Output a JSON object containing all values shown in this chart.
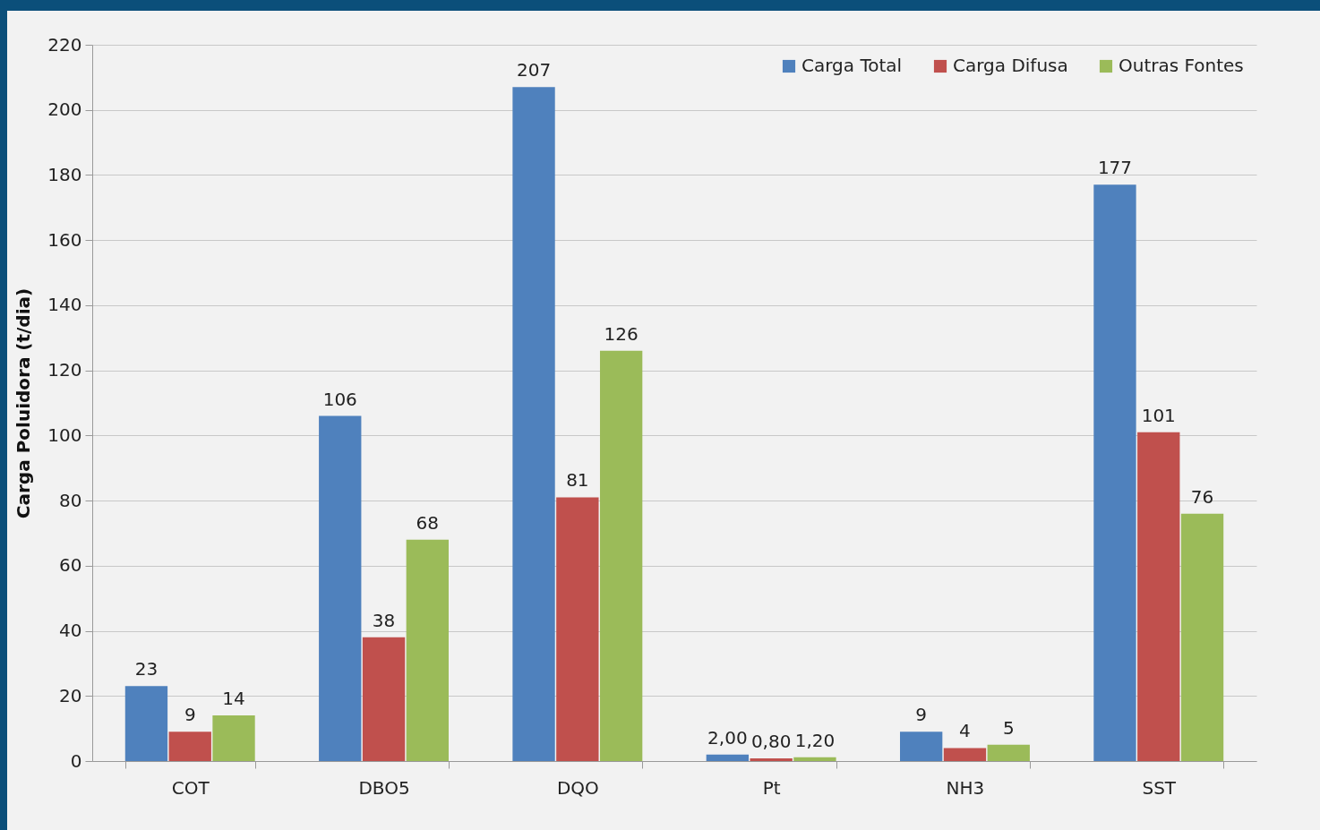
{
  "chart_data": {
    "type": "bar",
    "ylabel": "Carga Poluidora (t/dia)",
    "categories": [
      "COT",
      "DBO5",
      "DQO",
      "Pt",
      "NH3",
      "SST"
    ],
    "series": [
      {
        "name": "Carga Total",
        "color": "#4f81bd",
        "values": [
          23,
          106,
          207,
          2,
          9,
          177
        ],
        "value_labels": [
          "23",
          "106",
          "207",
          "2,00",
          "9",
          "177"
        ]
      },
      {
        "name": "Carga Difusa",
        "color": "#c0504d",
        "values": [
          9,
          38,
          81,
          0.8,
          4,
          101
        ],
        "value_labels": [
          "9",
          "38",
          "81",
          "0,80",
          "4",
          "101"
        ]
      },
      {
        "name": "Outras Fontes",
        "color": "#9bbb59",
        "values": [
          14,
          68,
          126,
          1.2,
          5,
          76
        ],
        "value_labels": [
          "14",
          "68",
          "126",
          "1,20",
          "5",
          "76"
        ]
      }
    ],
    "ylim": [
      0,
      220
    ],
    "yticks": [
      0,
      20,
      40,
      60,
      80,
      100,
      120,
      140,
      160,
      180,
      200,
      220
    ],
    "grid": "y",
    "legend": "top right"
  }
}
